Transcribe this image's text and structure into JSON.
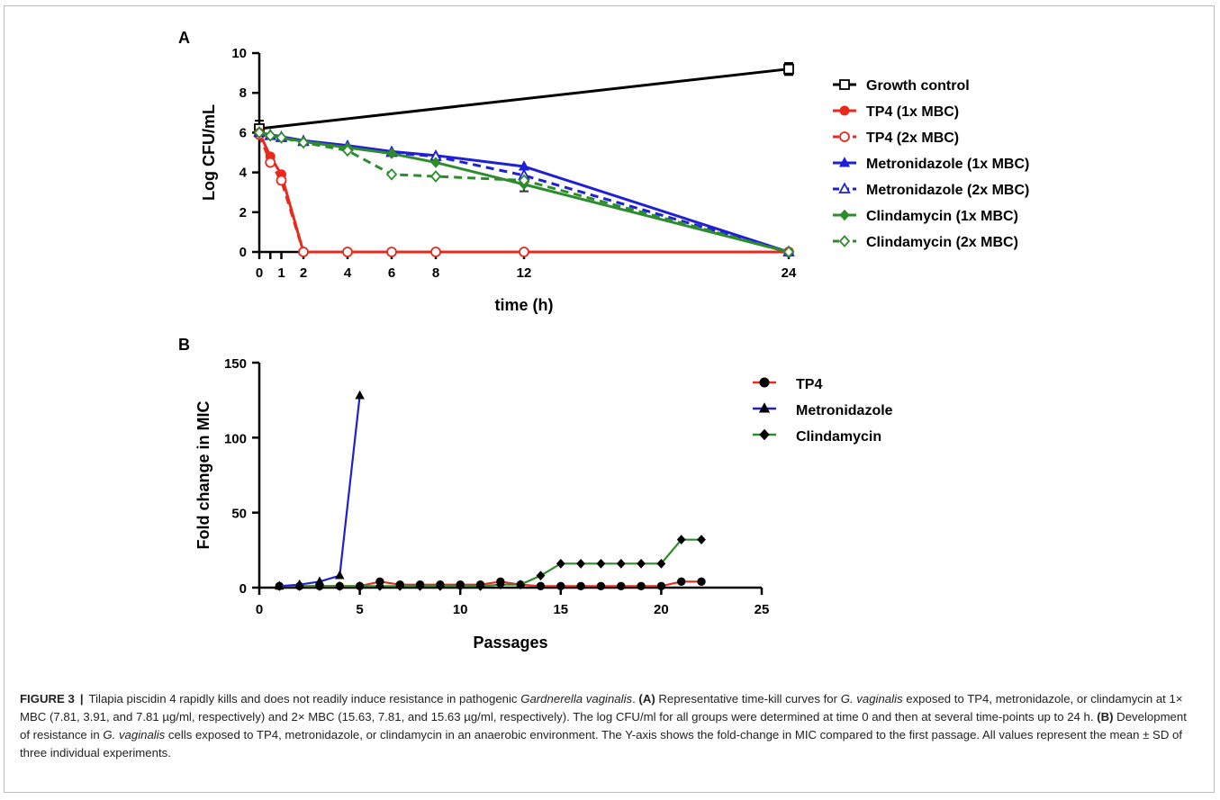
{
  "caption": {
    "label": "FIGURE 3",
    "separator": "|",
    "parts": [
      {
        "t": "Tilapia piscidin 4 rapidly kills and does not readily induce resistance in pathogenic ",
        "s": ""
      },
      {
        "t": "Gardnerella vaginalis",
        "s": "ital"
      },
      {
        "t": ". ",
        "s": ""
      },
      {
        "t": "(A)",
        "s": "bold"
      },
      {
        "t": " Representative time-kill curves for ",
        "s": ""
      },
      {
        "t": "G. vaginalis",
        "s": "ital"
      },
      {
        "t": " exposed to TP4, metronidazole, or clindamycin at 1× MBC (7.81, 3.91, and 7.81 µg/ml, respectively) and 2× MBC (15.63, 7.81, and 15.63 µg/ml, respectively). The log CFU/ml for all groups were determined at time 0 and then at several time-points up to 24 h. ",
        "s": ""
      },
      {
        "t": "(B)",
        "s": "bold"
      },
      {
        "t": " Development of resistance in ",
        "s": ""
      },
      {
        "t": "G. vaginalis",
        "s": "ital"
      },
      {
        "t": " cells exposed to TP4, metronidazole, or clindamycin in an anaerobic environment. The Y-axis shows the fold-change in MIC compared to the first passage. All values represent the mean ± SD of three individual experiments.",
        "s": ""
      }
    ]
  },
  "chart_data": [
    {
      "panel": "A",
      "type": "line",
      "xlabel": "time (h)",
      "ylabel": "Log CFU/mL",
      "xlim": [
        0,
        24
      ],
      "ylim": [
        0,
        10
      ],
      "xticks": [
        0,
        0.5,
        1,
        2,
        4,
        6,
        8,
        12,
        24
      ],
      "xtick_labels": [
        "0",
        "",
        "1",
        "2",
        "4",
        "6",
        "8",
        "12",
        "24"
      ],
      "yticks": [
        0,
        2,
        4,
        6,
        8,
        10
      ],
      "legend_position": "right",
      "series": [
        {
          "name": "Growth control",
          "color": "#000000",
          "marker": "square-open",
          "dash": false,
          "x": [
            0,
            24
          ],
          "y": [
            6.2,
            9.2
          ],
          "err": [
            0.4,
            0.3
          ]
        },
        {
          "name": "TP4 (1x MBC)",
          "color": "#e8291c",
          "marker": "circle-filled",
          "dash": false,
          "x": [
            0,
            0.5,
            1,
            2,
            4,
            6,
            8,
            12,
            24
          ],
          "y": [
            6.0,
            4.8,
            3.9,
            0,
            0,
            0,
            0,
            0,
            0
          ]
        },
        {
          "name": "TP4 (2x MBC)",
          "color": "#e8291c",
          "marker": "circle-open",
          "dash": true,
          "x": [
            0,
            0.5,
            1,
            2,
            4,
            6,
            8,
            12,
            24
          ],
          "y": [
            5.9,
            4.5,
            3.6,
            0,
            0,
            0,
            0,
            0,
            0
          ]
        },
        {
          "name": "Metronidazole (1x MBC)",
          "color": "#1f1fd6",
          "marker": "triangle-filled",
          "dash": false,
          "x": [
            0,
            0.5,
            1,
            2,
            4,
            6,
            8,
            12,
            24
          ],
          "y": [
            6.0,
            5.9,
            5.8,
            5.6,
            5.35,
            5.05,
            4.85,
            4.3,
            0
          ]
        },
        {
          "name": "Metronidazole (2x MBC)",
          "color": "#1f1fd6",
          "marker": "triangle-open",
          "dash": true,
          "x": [
            0,
            0.5,
            1,
            2,
            4,
            6,
            8,
            12,
            24
          ],
          "y": [
            6.0,
            5.85,
            5.75,
            5.55,
            5.3,
            5.0,
            4.8,
            3.85,
            0
          ]
        },
        {
          "name": "Clindamycin (1x MBC)",
          "color": "#2e8b2e",
          "marker": "diamond-filled",
          "dash": false,
          "x": [
            0,
            0.5,
            1,
            2,
            4,
            6,
            8,
            12,
            24
          ],
          "y": [
            6.0,
            5.85,
            5.75,
            5.55,
            5.25,
            4.95,
            4.5,
            3.4,
            0
          ],
          "err_at": 12,
          "err_val": 0.35
        },
        {
          "name": "Clindamycin (2x MBC)",
          "color": "#2e8b2e",
          "marker": "diamond-open",
          "dash": true,
          "x": [
            0,
            0.5,
            1,
            2,
            4,
            6,
            8,
            12,
            24
          ],
          "y": [
            6.0,
            5.85,
            5.75,
            5.5,
            5.1,
            3.9,
            3.8,
            3.6,
            0
          ]
        }
      ]
    },
    {
      "panel": "B",
      "type": "line",
      "xlabel": "Passages",
      "ylabel": "Fold change in MIC",
      "xlim": [
        0,
        25
      ],
      "ylim": [
        0,
        150
      ],
      "xticks": [
        0,
        5,
        10,
        15,
        20,
        25
      ],
      "yticks": [
        0,
        50,
        100,
        150
      ],
      "legend_position": "right",
      "series": [
        {
          "name": "TP4",
          "color": "#e8291c",
          "marker": "circle-filled",
          "x": [
            1,
            2,
            3,
            4,
            5,
            6,
            7,
            8,
            9,
            10,
            11,
            12,
            13,
            14,
            15,
            16,
            17,
            18,
            19,
            20,
            21,
            22
          ],
          "y": [
            1,
            1,
            1,
            1,
            1,
            4,
            2,
            2,
            2,
            2,
            2,
            4,
            2,
            1,
            1,
            1,
            1,
            1,
            1,
            1,
            4,
            4
          ]
        },
        {
          "name": "Metronidazole",
          "color": "#1f1fd6",
          "marker": "triangle-filled",
          "x": [
            1,
            2,
            3,
            4,
            5
          ],
          "y": [
            1,
            2,
            4,
            8,
            128
          ]
        },
        {
          "name": "Clindamycin",
          "color": "#2e8b2e",
          "marker": "diamond-filled",
          "x": [
            1,
            2,
            3,
            4,
            5,
            6,
            7,
            8,
            9,
            10,
            11,
            12,
            13,
            14,
            15,
            16,
            17,
            18,
            19,
            20,
            21,
            22
          ],
          "y": [
            1,
            1,
            1,
            1,
            1,
            1,
            1,
            1,
            1,
            1,
            1,
            2,
            2,
            8,
            16,
            16,
            16,
            16,
            16,
            16,
            32,
            32
          ]
        }
      ]
    }
  ]
}
